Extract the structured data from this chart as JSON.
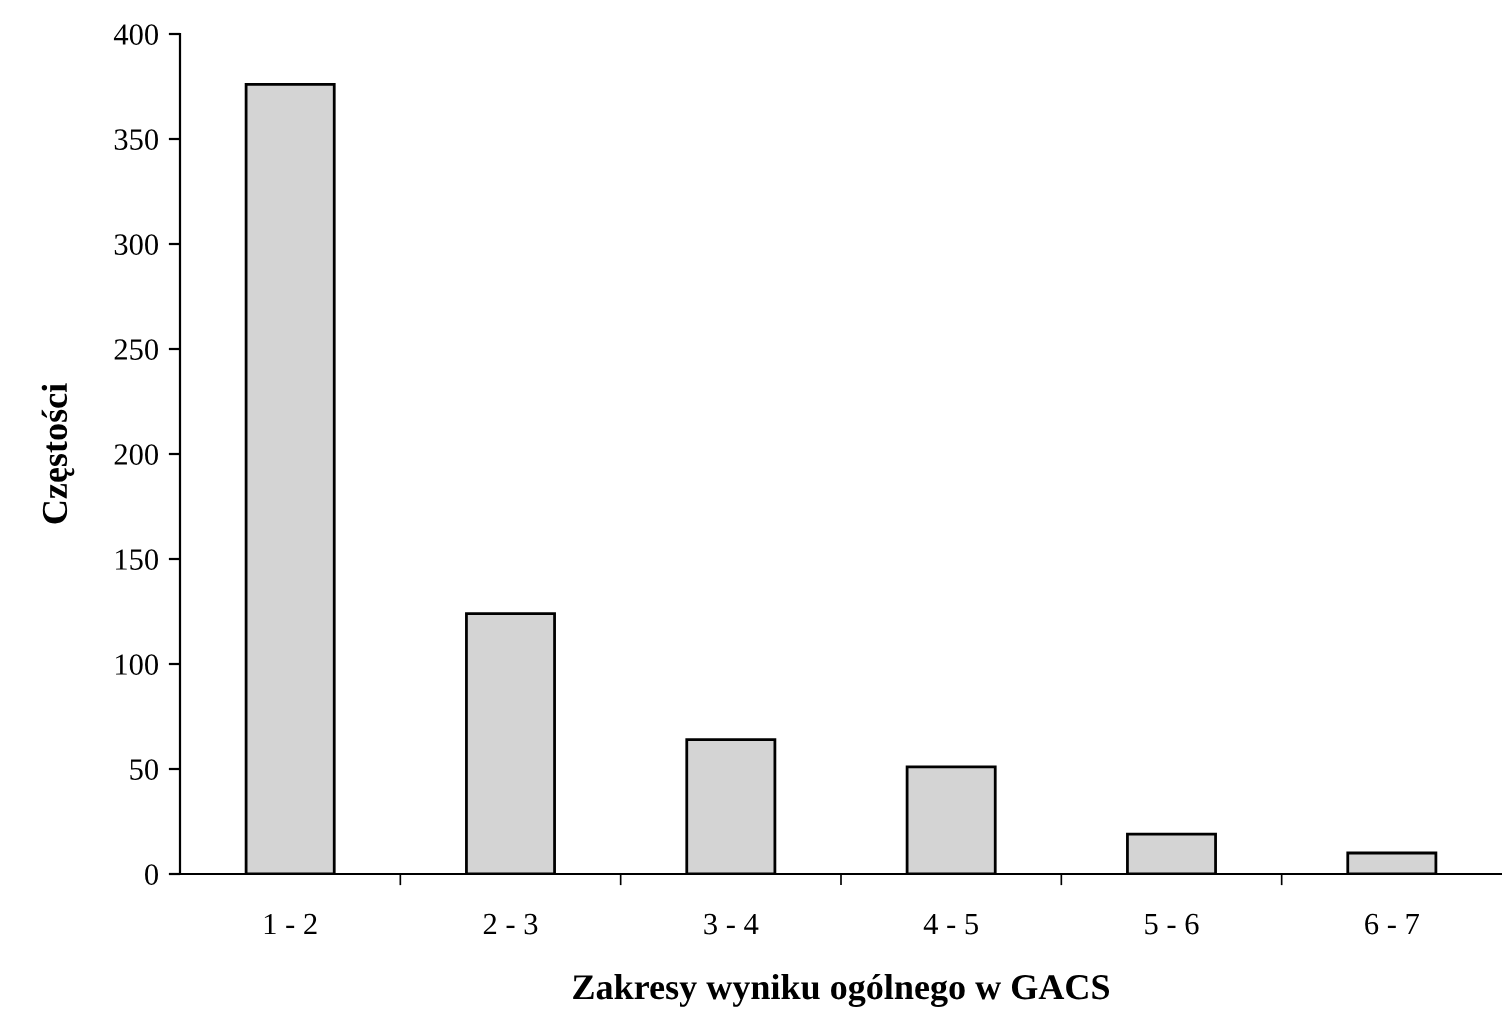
{
  "chart_data": {
    "type": "bar",
    "xlabel": "Zakresy wyniku ogólnego w GACS",
    "ylabel": "Częstości",
    "categories": [
      "1 - 2",
      "2 - 3",
      "3 - 4",
      "4 - 5",
      "5 - 6",
      "6 - 7"
    ],
    "values": [
      376,
      124,
      64,
      51,
      19,
      10
    ],
    "color": "#d4d4d4",
    "ylim": [
      0,
      400
    ],
    "yticks": [
      0,
      50,
      100,
      150,
      200,
      250,
      300,
      350,
      400
    ],
    "grid": false,
    "legend": false
  }
}
